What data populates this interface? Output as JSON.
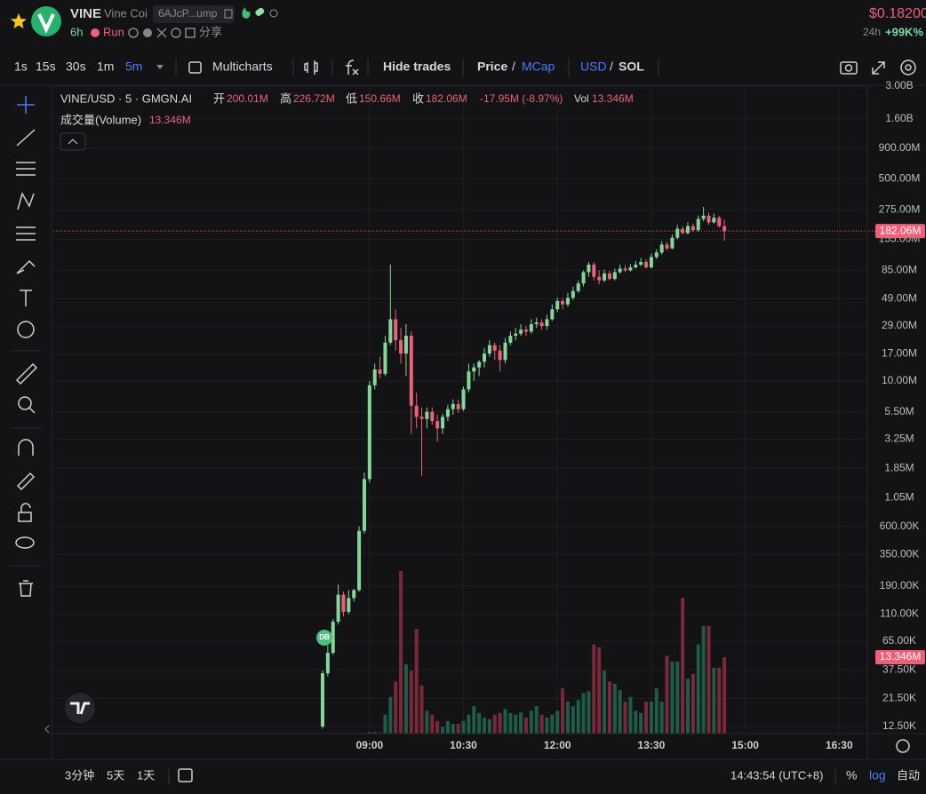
{
  "ui": {
    "header": {
      "symbol": "VINE",
      "name": "Vine Coi",
      "address": "6AJcP...ump",
      "age": "6h",
      "run": "Run",
      "share": "分享",
      "price": "$0.18200",
      "change_period": "24h",
      "change": "+99K%"
    },
    "toolbar": {
      "intervals": [
        "1s",
        "15s",
        "30s",
        "1m",
        "5m"
      ],
      "multicharts": "Multicharts",
      "hide_trades": "Hide trades",
      "price": "Price",
      "separator": "/",
      "mcap": "MCap",
      "usd": "USD",
      "sol": "SOL"
    },
    "legend": {
      "pair": "VINE/USD · 5 · GMGN.AI",
      "open_label": "开",
      "open": "200.01M",
      "high_label": "高",
      "high": "226.72M",
      "low_label": "低",
      "low": "150.66M",
      "close_label": "收",
      "close": "182.06M",
      "change": "-17.95M (-8.97%)",
      "vol_label": "Vol",
      "vol": "13.346M",
      "volume_label": "成交量(Volume)",
      "volume": "13.346M"
    },
    "marker": "DB",
    "bottom": {
      "ranges": [
        "3分钟",
        "5天",
        "1天"
      ],
      "time": "14:43:54 (UTC+8)",
      "percent": "%",
      "log": "log",
      "auto": "自动"
    }
  },
  "chart_data": {
    "type": "candlestick",
    "log_scale": true,
    "grid": true,
    "up_color": "#83d79b",
    "down_color": "#ee5f78",
    "volume_up_color": "#1e5c47",
    "volume_down_color": "#7b2839",
    "x": [
      495,
      500,
      505,
      510,
      515,
      520,
      525,
      530,
      535,
      540,
      545,
      550,
      555,
      560,
      565,
      570,
      575,
      580,
      585,
      590,
      595,
      600,
      605,
      610,
      615,
      620,
      625,
      630,
      635,
      640,
      645,
      650,
      655,
      660,
      665,
      670,
      675,
      680,
      685,
      690,
      695,
      700,
      705,
      710,
      715,
      720,
      725,
      730,
      735,
      740,
      745,
      750,
      755,
      760,
      765,
      770,
      775,
      780,
      785,
      790,
      795,
      800,
      805,
      810,
      815,
      820,
      825,
      830,
      835,
      840,
      845,
      850,
      855,
      860,
      865,
      870,
      875,
      880
    ],
    "open": [
      12500,
      35000,
      52000,
      95000,
      160000,
      115000,
      150000,
      175000,
      550000,
      1500000,
      9200000,
      12500000,
      11500000,
      21000000,
      33000000,
      22000000,
      17000000,
      24000000,
      6200000,
      5000000,
      4800000,
      5500000,
      4600000,
      4000000,
      5000000,
      5800000,
      6400000,
      5800000,
      8500000,
      12000000,
      13000000,
      14500000,
      17000000,
      20000000,
      18000000,
      15000000,
      21000000,
      24000000,
      25000000,
      27000000,
      26000000,
      30000000,
      31000000,
      29000000,
      33000000,
      40000000,
      47000000,
      44000000,
      50000000,
      57000000,
      66000000,
      82000000,
      95000000,
      75000000,
      70000000,
      80000000,
      72000000,
      82000000,
      88000000,
      85000000,
      90000000,
      95000000,
      100000000,
      90000000,
      110000000,
      120000000,
      140000000,
      130000000,
      160000000,
      190000000,
      175000000,
      200000000,
      185000000,
      230000000,
      245000000,
      215000000,
      235000000,
      200010000
    ],
    "high": [
      37000,
      60000,
      100000,
      195000,
      170000,
      175000,
      180000,
      600000,
      1700000,
      10000000,
      14000000,
      16000000,
      24000000,
      95000000,
      40000000,
      28000000,
      30000000,
      26000000,
      8000000,
      6000000,
      6000000,
      6000000,
      5200000,
      5300000,
      6300000,
      7000000,
      7000000,
      9000000,
      14000000,
      14000000,
      15000000,
      19000000,
      22000000,
      21000000,
      20000000,
      23000000,
      26000000,
      28000000,
      30000000,
      29000000,
      33000000,
      34000000,
      33000000,
      36000000,
      44000000,
      50000000,
      50000000,
      55000000,
      62000000,
      70000000,
      85000000,
      100000000,
      100000000,
      85000000,
      86000000,
      84000000,
      88000000,
      95000000,
      94000000,
      96000000,
      102000000,
      108000000,
      105000000,
      118000000,
      128000000,
      150000000,
      148000000,
      170000000,
      205000000,
      200000000,
      215000000,
      210000000,
      245000000,
      290000000,
      260000000,
      255000000,
      245000000,
      226720000
    ],
    "low": [
      12000,
      33000,
      50000,
      90000,
      105000,
      110000,
      140000,
      170000,
      520000,
      1400000,
      8500000,
      10500000,
      11000000,
      20000000,
      18000000,
      14000000,
      11000000,
      3600000,
      4000000,
      1600000,
      4000000,
      4300000,
      3100000,
      3600000,
      4600000,
      5200000,
      5400000,
      5600000,
      8000000,
      10000000,
      11000000,
      13000000,
      16000000,
      15000000,
      12000000,
      14000000,
      20000000,
      22000000,
      24000000,
      24000000,
      25000000,
      28000000,
      27000000,
      27000000,
      32000000,
      38000000,
      40000000,
      42000000,
      48000000,
      55000000,
      62000000,
      75000000,
      70000000,
      65000000,
      68000000,
      70000000,
      70000000,
      80000000,
      82000000,
      83000000,
      88000000,
      92000000,
      88000000,
      88000000,
      106000000,
      116000000,
      125000000,
      128000000,
      155000000,
      170000000,
      170000000,
      180000000,
      180000000,
      220000000,
      205000000,
      210000000,
      195000000,
      150660000
    ],
    "close": [
      35000,
      52000,
      95000,
      160000,
      115000,
      150000,
      175000,
      550000,
      1500000,
      9200000,
      12500000,
      11500000,
      21000000,
      33000000,
      22000000,
      17000000,
      24000000,
      6200000,
      5000000,
      4800000,
      5500000,
      4600000,
      4000000,
      5000000,
      5800000,
      6400000,
      5800000,
      8500000,
      12000000,
      13000000,
      14500000,
      17000000,
      20000000,
      18000000,
      15000000,
      21000000,
      24000000,
      25000000,
      27000000,
      26000000,
      30000000,
      31000000,
      29000000,
      33000000,
      40000000,
      47000000,
      44000000,
      50000000,
      57000000,
      66000000,
      82000000,
      95000000,
      75000000,
      70000000,
      80000000,
      72000000,
      82000000,
      88000000,
      85000000,
      90000000,
      95000000,
      100000000,
      90000000,
      110000000,
      120000000,
      140000000,
      130000000,
      160000000,
      190000000,
      175000000,
      200000000,
      185000000,
      230000000,
      245000000,
      215000000,
      235000000,
      200000000,
      182060000
    ],
    "volume": [
      50000,
      40000,
      35000,
      60000,
      30000,
      30000,
      40000,
      80000,
      120000,
      250000,
      300000,
      200000,
      3300000,
      6400000,
      9100000,
      28400000,
      12100000,
      11000000,
      18300000,
      8400000,
      4000000,
      3300000,
      2200000,
      1200000,
      2200000,
      1700000,
      1700000,
      2200000,
      3300000,
      4800000,
      3600000,
      2800000,
      2500000,
      3300000,
      3600000,
      4300000,
      3600000,
      3300000,
      3700000,
      2800000,
      4000000,
      4800000,
      3300000,
      2800000,
      3300000,
      4000000,
      7900000,
      5600000,
      4800000,
      5900000,
      7100000,
      7400000,
      15600000,
      15100000,
      11000000,
      9100000,
      8700000,
      7600000,
      5600000,
      6400000,
      4000000,
      3600000,
      5600000,
      5600000,
      7900000,
      5600000,
      13600000,
      12600000,
      12600000,
      23700000,
      9600000,
      10400000,
      15600000,
      18800000,
      18800000,
      11500000,
      11500000,
      13346000
    ],
    "volume_ylim": [
      0,
      28400000
    ],
    "last_price": {
      "value": 182060000,
      "label": "182.06M"
    },
    "last_volume": {
      "value": 13346000,
      "label": "13.346M"
    },
    "xlim": [
      237,
      1017
    ],
    "xticks": [
      {
        "value": 540,
        "label": "09:00"
      },
      {
        "value": 630,
        "label": "10:30"
      },
      {
        "value": 720,
        "label": "12:00"
      },
      {
        "value": 810,
        "label": "13:30"
      },
      {
        "value": 900,
        "label": "15:00"
      },
      {
        "value": 990,
        "label": "16:30"
      }
    ],
    "ylim": [
      10900,
      3000000000
    ],
    "yticks": [
      {
        "value": 3000000000,
        "label": "3.00B"
      },
      {
        "value": 1600000000,
        "label": "1.60B"
      },
      {
        "value": 900000000,
        "label": "900.00M"
      },
      {
        "value": 500000000,
        "label": "500.00M"
      },
      {
        "value": 275000000,
        "label": "275.00M"
      },
      {
        "value": 155000000,
        "label": "155.00M"
      },
      {
        "value": 85000000,
        "label": "85.00M"
      },
      {
        "value": 49000000,
        "label": "49.00M"
      },
      {
        "value": 29000000,
        "label": "29.00M"
      },
      {
        "value": 17000000,
        "label": "17.00M"
      },
      {
        "value": 10000000,
        "label": "10.00M"
      },
      {
        "value": 5500000,
        "label": "5.50M"
      },
      {
        "value": 3250000,
        "label": "3.25M"
      },
      {
        "value": 1850000,
        "label": "1.85M"
      },
      {
        "value": 1050000,
        "label": "1.05M"
      },
      {
        "value": 600000,
        "label": "600.00K"
      },
      {
        "value": 350000,
        "label": "350.00K"
      },
      {
        "value": 190000,
        "label": "190.00K"
      },
      {
        "value": 110000,
        "label": "110.00K"
      },
      {
        "value": 65000,
        "label": "65.00K"
      },
      {
        "value": 37500,
        "label": "37.50K"
      },
      {
        "value": 21500,
        "label": "21.50K"
      },
      {
        "value": 12500,
        "label": "12.50K"
      }
    ]
  }
}
